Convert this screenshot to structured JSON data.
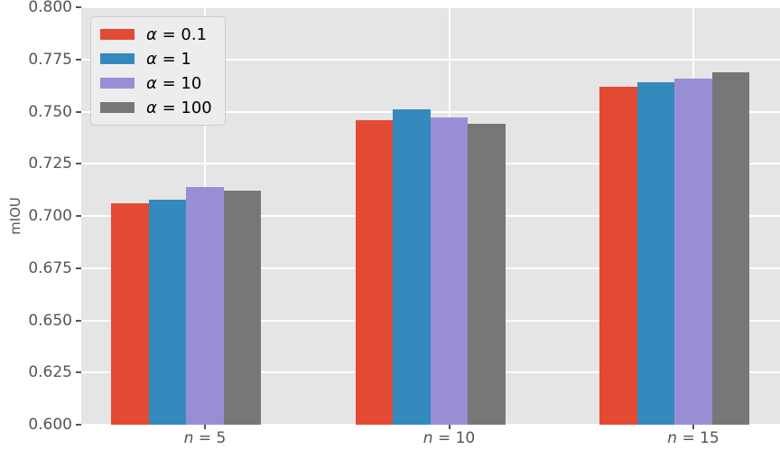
{
  "figure": {
    "kind": "matplotlib-bar-chart"
  },
  "chart_data": {
    "type": "bar",
    "title": "",
    "xlabel": "",
    "ylabel": "mIOU",
    "categories": [
      "n = 5",
      "n = 10",
      "n = 15"
    ],
    "series": [
      {
        "name": "α = 0.1",
        "color": "#E24A33",
        "values": [
          0.706,
          0.746,
          0.762
        ]
      },
      {
        "name": "α = 1",
        "color": "#348ABD",
        "values": [
          0.708,
          0.751,
          0.764
        ]
      },
      {
        "name": "α = 10",
        "color": "#988ED5",
        "values": [
          0.714,
          0.747,
          0.766
        ]
      },
      {
        "name": "α = 100",
        "color": "#777777",
        "values": [
          0.712,
          0.744,
          0.769
        ]
      }
    ],
    "ylim": [
      0.6,
      0.8
    ],
    "ytick_step": 0.025,
    "ytick_labels": [
      "0.600",
      "0.625",
      "0.650",
      "0.675",
      "0.700",
      "0.725",
      "0.750",
      "0.775",
      "0.800"
    ],
    "grid": true,
    "legend_position": "upper left",
    "style": {
      "plot_background": "#E5E5E5",
      "figure_background": "#FFFFFF",
      "gridline_color": "#FFFFFF",
      "tick_text_color": "#555555",
      "legend_background": "#EDEDED",
      "legend_border": "#CCCCCC",
      "legend_text_color": "#000000"
    }
  }
}
